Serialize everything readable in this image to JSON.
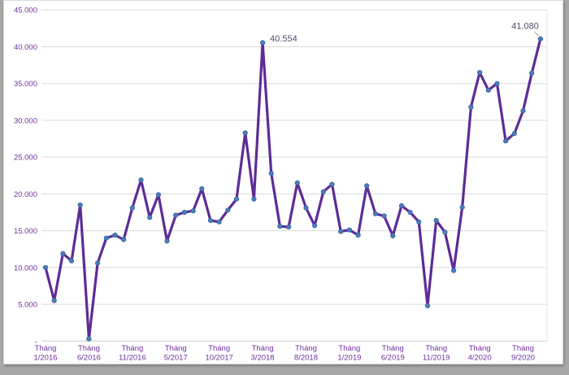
{
  "chart_data": {
    "type": "line",
    "title": "",
    "xlabel": "",
    "ylabel": "",
    "ylim": [
      0,
      45000
    ],
    "grid": "horizontal",
    "legend": "none",
    "x": "monthly points from Tháng 1/2016 to late 2020, 58 points",
    "series": [
      {
        "name": "monthly-value",
        "values": [
          10000,
          5500,
          11900,
          10900,
          18500,
          300,
          10600,
          14000,
          14400,
          13800,
          18100,
          21900,
          16800,
          19900,
          13600,
          17100,
          17500,
          17700,
          20700,
          16400,
          16200,
          17800,
          19300,
          28300,
          19300,
          40554,
          22800,
          15600,
          15500,
          21500,
          18100,
          15700,
          20300,
          21300,
          14900,
          15100,
          14400,
          21100,
          17300,
          17000,
          14300,
          18400,
          17500,
          16200,
          4800,
          16400,
          14800,
          9600,
          18200,
          31800,
          36500,
          34100,
          35000,
          27200,
          28200,
          31300,
          36400,
          41080
        ]
      }
    ],
    "x_ticks": [
      {
        "index": 0,
        "label": "Tháng 1/2016"
      },
      {
        "index": 5,
        "label": "Tháng 6/2016"
      },
      {
        "index": 10,
        "label": "Tháng 11/2016"
      },
      {
        "index": 15,
        "label": "Tháng 5/2017"
      },
      {
        "index": 20,
        "label": "Tháng 10/2017"
      },
      {
        "index": 25,
        "label": "Tháng 3/2018"
      },
      {
        "index": 30,
        "label": "Tháng 8/2018"
      },
      {
        "index": 35,
        "label": "Tháng 1/2019"
      },
      {
        "index": 40,
        "label": "Tháng 6/2019"
      },
      {
        "index": 45,
        "label": "Tháng 11/2019"
      },
      {
        "index": 50,
        "label": "Tháng 4/2020"
      },
      {
        "index": 55,
        "label": "Tháng 9/2020"
      }
    ],
    "y_ticks": [
      {
        "value": 45000,
        "label": "45.000"
      },
      {
        "value": 40000,
        "label": "40.000"
      },
      {
        "value": 35000,
        "label": "35.000"
      },
      {
        "value": 30000,
        "label": "30.000"
      },
      {
        "value": 25000,
        "label": "25.000"
      },
      {
        "value": 20000,
        "label": "20.000"
      },
      {
        "value": 15000,
        "label": "15.000"
      },
      {
        "value": 10000,
        "label": "10.000"
      },
      {
        "value": 5000,
        "label": "5.000"
      },
      {
        "value": 0,
        "label": "-"
      }
    ],
    "annotations": [
      {
        "index": 25,
        "text": "40.554",
        "placement": "right-of-peak"
      },
      {
        "index": 57,
        "text": "41.080",
        "placement": "above-with-leader"
      }
    ],
    "colors": {
      "line": "#5E2B97",
      "marker_fill": "#4C7FC0",
      "marker_stroke": "#39679E",
      "axis_text": "#7030A0",
      "data_label_text": "#564A6D",
      "gridline": "#DADADA",
      "axis_line": "#C8C8C8",
      "plot_right_border": "#E4E4E4",
      "background": "#FFFFFF",
      "frame_background": "#A8A8A8",
      "leader_line": "#9E9E9E"
    }
  }
}
